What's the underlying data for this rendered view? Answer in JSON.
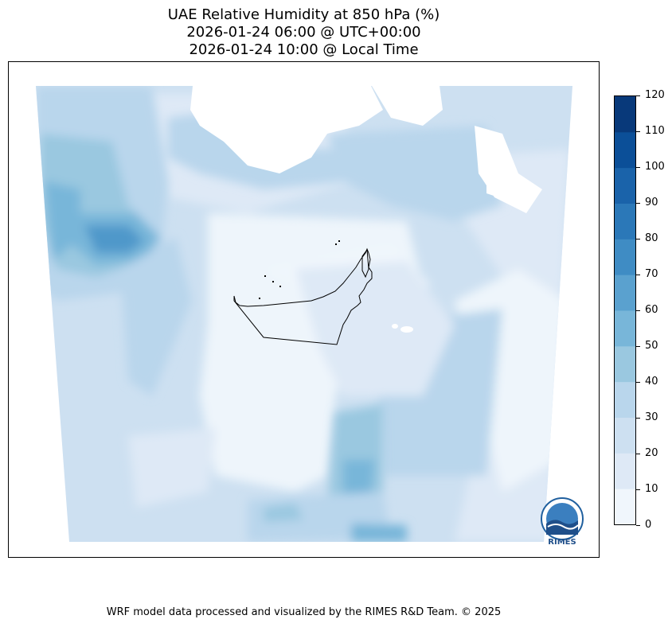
{
  "title": {
    "line1": "UAE Relative Humidity at 850 hPa (%)",
    "line2": "2026-01-24 06:00 @ UTC+00:00",
    "line3": "2026-01-24 10:00 @ Local Time"
  },
  "colorbar": {
    "ticks": [
      "0",
      "10",
      "20",
      "30",
      "40",
      "50",
      "60",
      "70",
      "80",
      "90",
      "100",
      "110",
      "120"
    ],
    "colors": [
      "#f0f6fc",
      "#dee9f6",
      "#cde0f1",
      "#b9d6ec",
      "#9ac8e0",
      "#78b6d9",
      "#5aa1cf",
      "#3f8cc4",
      "#2b78b8",
      "#1a63aa",
      "#0b4f98",
      "#08397a"
    ]
  },
  "logo": {
    "label": "RIMES"
  },
  "footer": "WRF model data processed and visualized by the RIMES R&D Team. © 2025"
}
